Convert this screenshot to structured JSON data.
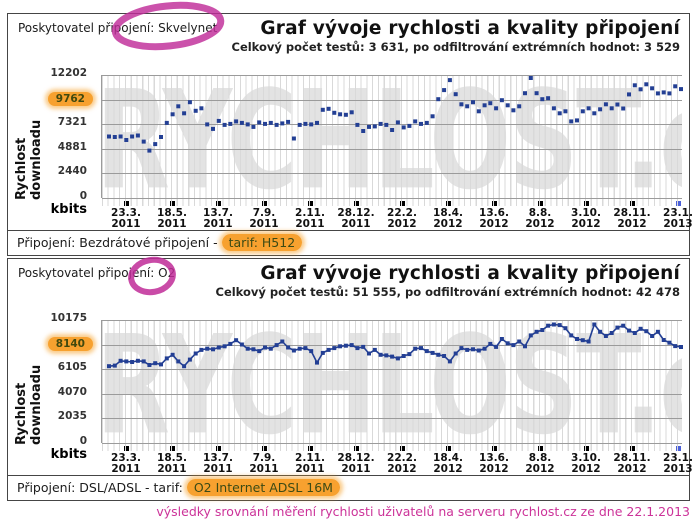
{
  "footer_note": "výsledky srovnání měření rychlosti uživatelů na serveru rychlost.cz ze dne 22.1.2013",
  "colors": {
    "series_navy": "#233f94",
    "grid_h": "#9b9b9b",
    "grid_v": "#d9d9d9",
    "highlight_orange": "#f7a12f",
    "marker_magenta": "#c02c98",
    "last_tick_blue": "#4a5fd8",
    "footer_pink": "#cc3399",
    "watermark_gray": "#e3e3e3"
  },
  "panels": [
    {
      "provider_label": "Poskytovatel připojení:",
      "provider_value": "Skvelynet",
      "title": "Graf vývoje rychlosti a kvality připojení",
      "subtitle": "Celkový počet testů: 3 631, po odfiltrování extrémních hodnot: 3 529",
      "y_axis_label": "Rychlost downloadu",
      "y_unit": "kbits",
      "y_ticks": [
        "12202",
        "9762",
        "7321",
        "4881",
        "2440",
        "0"
      ],
      "highlighted_y_tick": "9762",
      "x_ticks": [
        {
          "d": "23.3.",
          "y": "2011"
        },
        {
          "d": "18.5.",
          "y": "2011"
        },
        {
          "d": "13.7.",
          "y": "2011"
        },
        {
          "d": "7.9.",
          "y": "2011"
        },
        {
          "d": "2.11.",
          "y": "2011"
        },
        {
          "d": "28.12.",
          "y": "2011"
        },
        {
          "d": "22.2.",
          "y": "2012"
        },
        {
          "d": "18.4.",
          "y": "2012"
        },
        {
          "d": "13.6.",
          "y": "2012"
        },
        {
          "d": "8.8.",
          "y": "2012"
        },
        {
          "d": "3.10.",
          "y": "2012"
        },
        {
          "d": "28.11.",
          "y": "2012"
        },
        {
          "d": "23.1.",
          "y": "2013"
        }
      ],
      "connection_label": "Připojení: Bezdrátové připojení - ",
      "tarif_highlight": "tarif: H512",
      "watermark": "RYCHLOST.cz"
    },
    {
      "provider_label": "Poskytovatel připojení:",
      "provider_value": "O2",
      "title": "Graf vývoje rychlosti a kvality připojení",
      "subtitle": "Celkový počet testů: 51 555, po odfiltrování extrémních hodnot: 42 478",
      "y_axis_label": "Rychlost downloadu",
      "y_unit": "kbits",
      "y_ticks": [
        "10175",
        "8140",
        "6105",
        "4070",
        "2035",
        "0"
      ],
      "highlighted_y_tick": "8140",
      "x_ticks": [
        {
          "d": "23.3.",
          "y": "2011"
        },
        {
          "d": "18.5.",
          "y": "2011"
        },
        {
          "d": "13.7.",
          "y": "2011"
        },
        {
          "d": "7.9.",
          "y": "2011"
        },
        {
          "d": "2.11.",
          "y": "2011"
        },
        {
          "d": "28.12.",
          "y": "2011"
        },
        {
          "d": "22.2.",
          "y": "2012"
        },
        {
          "d": "18.4.",
          "y": "2012"
        },
        {
          "d": "13.6.",
          "y": "2012"
        },
        {
          "d": "8.8.",
          "y": "2012"
        },
        {
          "d": "3.10.",
          "y": "2012"
        },
        {
          "d": "28.11.",
          "y": "2012"
        },
        {
          "d": "23.1.",
          "y": "2013"
        }
      ],
      "connection_label": "Připojení: DSL/ADSL - tarif: ",
      "tarif_highlight": "O2 Internet ADSL 16M",
      "watermark": "RYCHLOST.cz"
    }
  ],
  "chart_data": [
    {
      "type": "scatter",
      "title": "Graf vývoje rychlosti a kvality připojení",
      "subtitle": "Celkový počet testů: 3 631, po odfiltrování extrémních hodnot: 3 529",
      "ylabel": "Rychlost downloadu",
      "unit": "kbits",
      "ylim": [
        0,
        12202
      ],
      "ymax": 12202,
      "categories": [
        "23.3.2011",
        "18.5.2011",
        "13.7.2011",
        "7.9.2011",
        "2.11.2011",
        "28.12.2011",
        "22.2.2012",
        "18.4.2012",
        "13.6.2012",
        "8.8.2012",
        "3.10.2012",
        "28.11.2012",
        "23.1.2013"
      ],
      "sampling": "weekly averages, values estimated from plot",
      "values": [
        6100,
        6050,
        6100,
        5750,
        6100,
        6200,
        5600,
        4700,
        5350,
        6050,
        7450,
        8300,
        9100,
        8400,
        9500,
        8650,
        8900,
        7300,
        6850,
        7650,
        7250,
        7350,
        7600,
        7450,
        7300,
        7050,
        7500,
        7350,
        7450,
        7250,
        7400,
        7550,
        5900,
        7250,
        7350,
        7300,
        7450,
        8750,
        8850,
        8450,
        8300,
        8250,
        8500,
        7250,
        6650,
        7050,
        7100,
        7350,
        7250,
        6750,
        7500,
        7000,
        7150,
        7600,
        7350,
        7450,
        8100,
        9800,
        10700,
        11700,
        10300,
        9300,
        9100,
        9500,
        8600,
        9200,
        9400,
        8900,
        9700,
        9200,
        8700,
        9100,
        10400,
        11900,
        10400,
        9800,
        9900,
        8900,
        8400,
        8600,
        7600,
        7700,
        8600,
        8900,
        8400,
        8800,
        9300,
        8900,
        9280,
        8880,
        10280,
        11180,
        10780,
        11280,
        10880,
        10380,
        10480,
        10380,
        11080,
        10800
      ]
    },
    {
      "type": "line",
      "title": "Graf vývoje rychlosti a kvality připojení",
      "subtitle": "Celkový počet testů: 51 555, po odfiltrování extrémních hodnot: 42 478",
      "ylabel": "Rychlost downloadu",
      "unit": "kbits",
      "ylim": [
        0,
        10175
      ],
      "ymax": 10175,
      "categories": [
        "23.3.2011",
        "18.5.2011",
        "13.7.2011",
        "7.9.2011",
        "2.11.2011",
        "28.12.2011",
        "22.2.2012",
        "18.4.2012",
        "13.6.2012",
        "8.8.2012",
        "3.10.2012",
        "28.11.2012",
        "23.1.2013"
      ],
      "sampling": "weekly averages, values estimated from plot",
      "values": [
        6350,
        6400,
        6800,
        6750,
        6700,
        6800,
        6750,
        6450,
        6600,
        6500,
        7000,
        7300,
        6750,
        6350,
        6900,
        7400,
        7700,
        7800,
        7750,
        7900,
        8000,
        8200,
        8500,
        8150,
        7800,
        7750,
        7600,
        7900,
        7800,
        8100,
        8400,
        7900,
        7650,
        7800,
        7850,
        7600,
        6650,
        7450,
        7700,
        7850,
        8000,
        8050,
        8100,
        7850,
        7950,
        7400,
        7700,
        7300,
        7250,
        7150,
        7000,
        7200,
        7350,
        7800,
        7850,
        7600,
        7450,
        7300,
        7200,
        6750,
        7400,
        7850,
        7700,
        7750,
        7650,
        7800,
        8200,
        7950,
        8600,
        8250,
        8100,
        8400,
        8000,
        8900,
        9200,
        9350,
        9700,
        9800,
        9750,
        9500,
        8900,
        8600,
        8500,
        8400,
        9800,
        9200,
        8850,
        9100,
        9550,
        9700,
        9300,
        9100,
        9450,
        9250,
        8850,
        9200,
        8520,
        8300,
        8020,
        7940
      ]
    }
  ]
}
